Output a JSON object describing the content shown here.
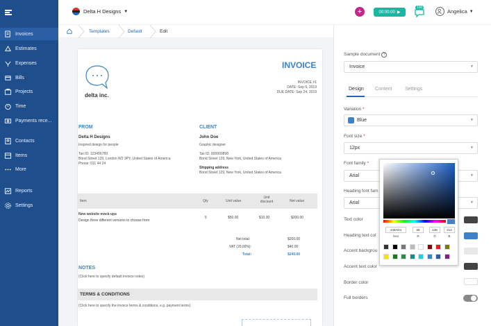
{
  "app": {
    "org_name": "Delta H Designs",
    "timer": "00:00:00",
    "chat_badge": "100",
    "user_name": "Angelica"
  },
  "sidebar": {
    "items": [
      {
        "label": "Invoices",
        "icon": "invoice-icon"
      },
      {
        "label": "Estimates",
        "icon": "estimate-icon"
      },
      {
        "label": "Expenses",
        "icon": "expense-icon"
      },
      {
        "label": "Bills",
        "icon": "bill-icon"
      },
      {
        "label": "Projects",
        "icon": "project-icon"
      },
      {
        "label": "Time",
        "icon": "stopwatch-icon"
      },
      {
        "label": "Payments rece...",
        "icon": "payment-icon"
      },
      {
        "label": "Contacts",
        "icon": "contacts-icon"
      },
      {
        "label": "Items",
        "icon": "items-icon"
      },
      {
        "label": "More",
        "icon": "more-icon"
      },
      {
        "label": "Reports",
        "icon": "reports-icon"
      },
      {
        "label": "Settings",
        "icon": "gear-icon"
      }
    ]
  },
  "breadcrumb": {
    "templates": "Templates",
    "default": "Default",
    "edit": "Edit"
  },
  "invoice": {
    "title": "INVOICE",
    "number": "INVOICE #1",
    "date": "DATE: Sep 9, 2019",
    "due_date": "DUE DATE: Sep 24, 2019",
    "company_logo_text": "delta inc.",
    "from_heading": "FROM",
    "from_name": "Delta H Designs",
    "from_tagline": "Inspired design for people",
    "from_tax": "Tax ID: 123456789",
    "from_address": "Bond Street 129, London W2 3PY, United States of America",
    "from_phone": "Phone: 011 44 24",
    "client_heading": "CLIENT",
    "client_name": "John Doe",
    "client_role": "Graphic designer",
    "client_tax": "Tax ID: 800900898",
    "client_address": "Bond Street 129, New York, United States of America",
    "shipping_heading": "Shipping address",
    "shipping_address": "Bond Street 129, New York, United States of America",
    "table_headers": {
      "item": "Item",
      "qty": "Qty",
      "unit_value": "Unit value",
      "unit_discount_1": "Unit",
      "unit_discount_2": "discount",
      "net_value": "Net value"
    },
    "rows": [
      {
        "item": "New website mock-ups",
        "desc": "Design three different versions to choose from",
        "qty": "5",
        "unit_value": "$50.00",
        "unit_discount": "$10.00",
        "net_value": "$200.00"
      }
    ],
    "net_total_label": "Net total:",
    "net_total": "$200.00",
    "vat_label": "VAT (20.00%):",
    "vat": "$40.00",
    "total_label": "Total:",
    "total": "$240.00",
    "notes_heading": "NOTES",
    "notes_text": "(Click here to specify default invoice notes)",
    "terms_heading": "TERMS & CONDITIONS",
    "terms_text": "(Click here to specify the invoice terms & conditions, e.g. payment terms)"
  },
  "panel": {
    "sample_label": "Sample document",
    "sample_value": "Invoice",
    "tabs": [
      "Design",
      "Content",
      "Settings"
    ],
    "variation_label": "Variation",
    "variation_value": "Blue",
    "font_size_label": "Font size",
    "font_size_value": "12px",
    "font_family_label": "Font family",
    "font_family_value": "Arial",
    "heading_font_label": "Heading font fam",
    "heading_font_value": "Arial",
    "text_color_label": "Text color",
    "heading_text_color_label": "Heading text col",
    "accent_bg_label": "Accent backgrou",
    "accent_text_label": "Accent text color",
    "border_color_label": "Border color",
    "full_borders_label": "Full borders",
    "colors": {
      "text": "#444444",
      "heading": "#3c82c7",
      "accent_bg": "#e8e8e8",
      "accent_text": "#444444",
      "border": "#ffffff",
      "brand": "#1f4e8c"
    }
  },
  "picker": {
    "hex": "448AD4",
    "r": "68",
    "g": "138",
    "b": "212",
    "hex_label": "Hex",
    "r_label": "R",
    "g_label": "G",
    "b_label": "B",
    "swatches": [
      "#333333",
      "#000000",
      "#777777",
      "#bbbbbb",
      "#ffffff",
      "#7a0c0c",
      "#e02020",
      "#7a7a10",
      "#f2e600",
      "#1a7a1a",
      "#2a8a4a",
      "#128a8a",
      "#1ad0e0",
      "#3c82c7",
      "#2a5ea5",
      "#8a1a8a"
    ]
  }
}
